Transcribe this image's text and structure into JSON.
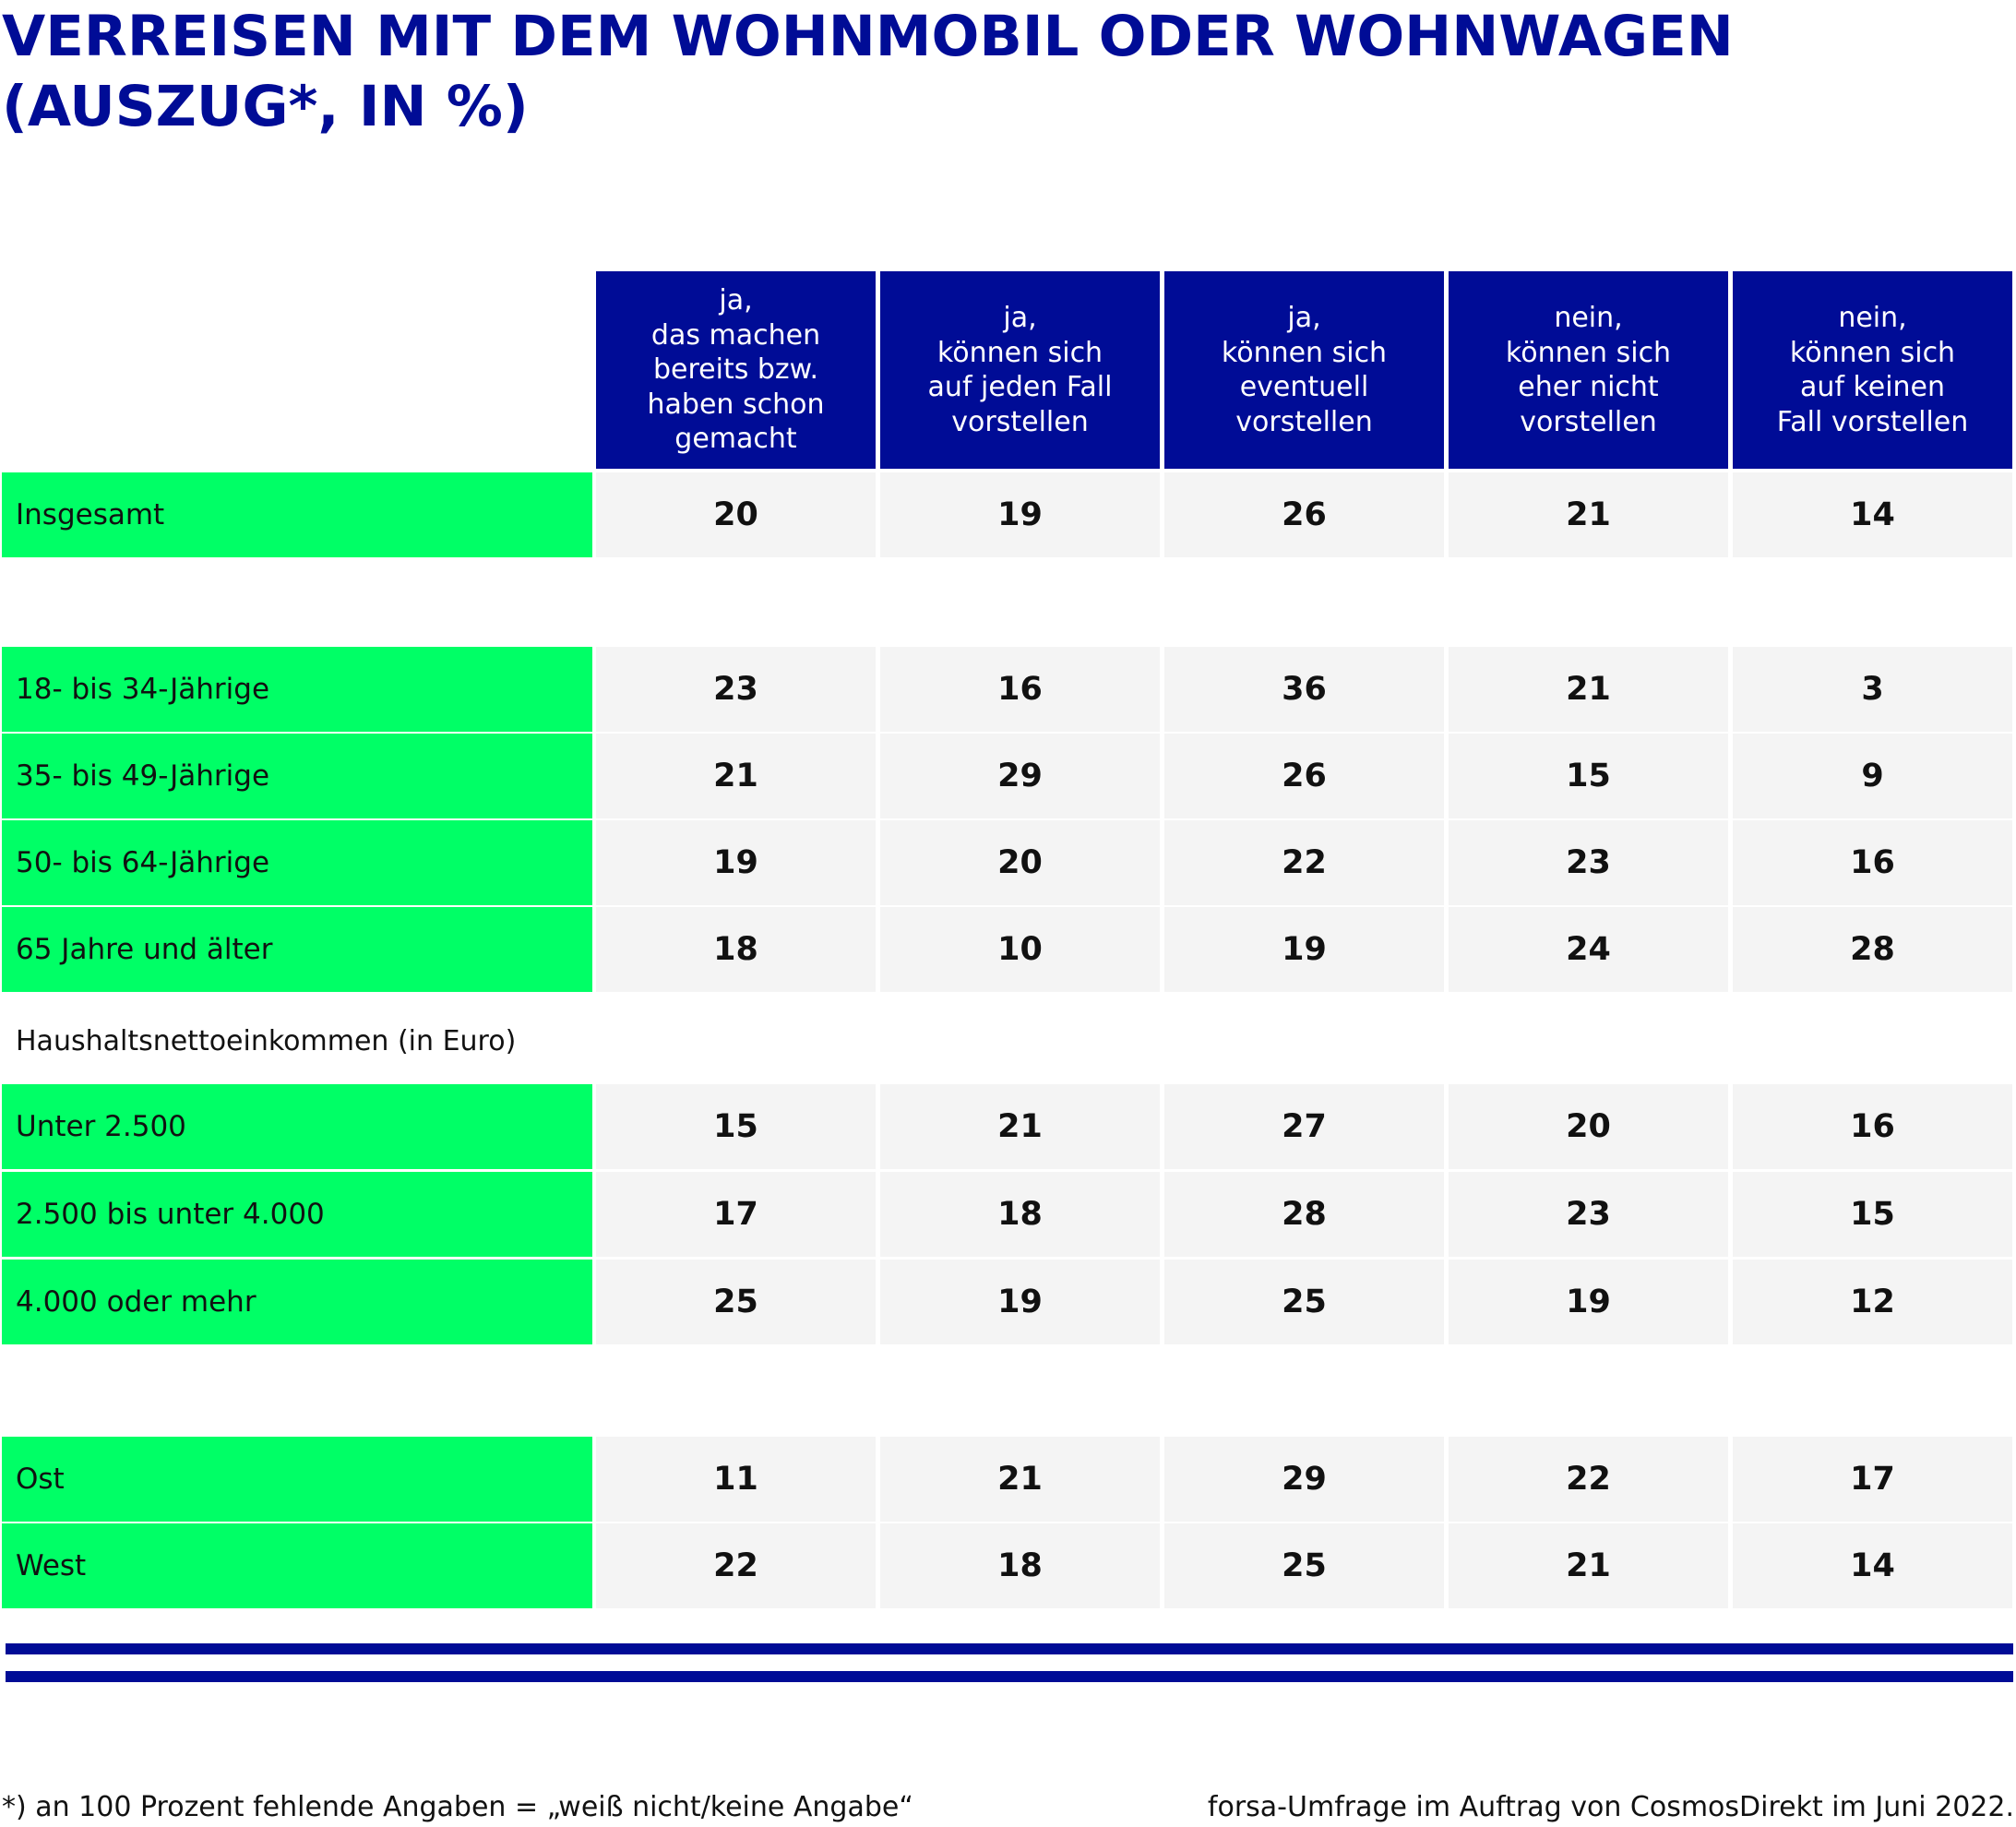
{
  "chart_data": {
    "type": "table",
    "title": [
      "VERREISEN MIT DEM WOHNMOBIL ODER WOHNWAGEN",
      "(AUSZUG*, IN %)"
    ],
    "columns": [
      [
        "ja,",
        "das machen",
        "bereits bzw.",
        "haben schon",
        "gemacht"
      ],
      [
        "ja,",
        "können sich",
        "auf jeden Fall",
        "vorstellen"
      ],
      [
        "ja,",
        "können sich",
        "eventuell",
        "vorstellen"
      ],
      [
        "nein,",
        "können sich",
        "eher nicht",
        "vorstellen"
      ],
      [
        "nein,",
        "können sich",
        "auf keinen",
        "Fall vorstellen"
      ]
    ],
    "rows": [
      {
        "label": "Insgesamt",
        "values": [
          20,
          19,
          26,
          21,
          14
        ]
      },
      {
        "label": "18- bis 34-Jährige",
        "values": [
          23,
          16,
          36,
          21,
          3
        ]
      },
      {
        "label": "35- bis 49-Jährige",
        "values": [
          21,
          29,
          26,
          15,
          9
        ]
      },
      {
        "label": "50- bis 64-Jährige",
        "values": [
          19,
          20,
          22,
          23,
          16
        ]
      },
      {
        "label": "65 Jahre und älter",
        "values": [
          18,
          10,
          19,
          24,
          28
        ]
      },
      {
        "label": "Unter 2.500",
        "values": [
          15,
          21,
          27,
          20,
          16
        ]
      },
      {
        "label": "2.500 bis unter 4.000",
        "values": [
          17,
          18,
          28,
          23,
          15
        ]
      },
      {
        "label": "4.000 oder mehr",
        "values": [
          25,
          19,
          25,
          19,
          12
        ]
      },
      {
        "label": "Ost",
        "values": [
          11,
          21,
          29,
          22,
          17
        ]
      },
      {
        "label": "West",
        "values": [
          22,
          18,
          25,
          21,
          14
        ]
      }
    ],
    "section_label": "Haushaltsnettoeinkommen (in Euro)",
    "footnote": "*) an 100 Prozent fehlende Angaben = „weiß nicht/keine Angabe“",
    "source": "forsa-Umfrage im Auftrag von CosmosDirekt im Juni 2022."
  },
  "colors": {
    "header_bg": "#000c96",
    "title_color": "#000c96",
    "label_bg": "#00ff66",
    "cell_bg": "#f4f4f4",
    "rule_color": "#000c96"
  }
}
